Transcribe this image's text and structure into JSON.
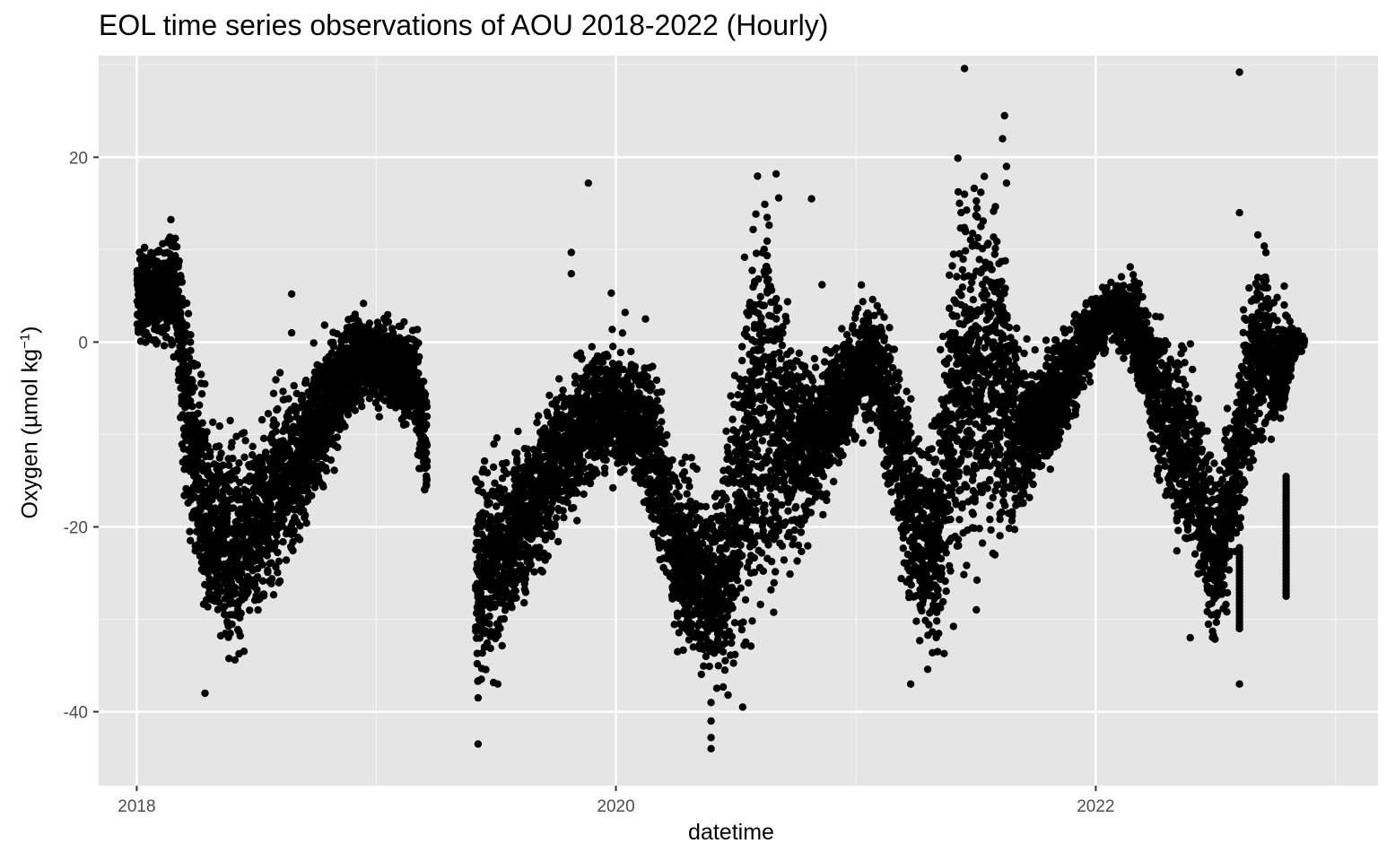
{
  "chart_data": {
    "type": "scatter",
    "title": "EOL time series observations of AOU 2018-2022 (Hourly)",
    "xlabel": "datetime",
    "ylabel": {
      "prefix": "Oxygen (µmol kg",
      "superscript": "−1",
      "suffix": ")"
    },
    "x_ticks": [
      "2018",
      "2020",
      "2022"
    ],
    "y_ticks": [
      "-40",
      "-20",
      "0",
      "20"
    ],
    "xlim": [
      "2017-11-04",
      "2023-03-07"
    ],
    "ylim": [
      -48,
      31
    ],
    "grid": true,
    "panel_background": "#e5e5e5",
    "point_color": "#000000",
    "series_envelope": {
      "dates": [
        "2018-01-01",
        "2018-02-01",
        "2018-03-01",
        "2018-03-15",
        "2018-04-01",
        "2018-05-01",
        "2018-06-01",
        "2018-07-01",
        "2018-08-01",
        "2018-09-01",
        "2018-10-01",
        "2018-11-01",
        "2018-12-01",
        "2019-01-01",
        "2019-02-01",
        "2019-03-01",
        "2019-03-20",
        "2019-06-01",
        "2019-07-01",
        "2019-08-01",
        "2019-09-01",
        "2019-10-01",
        "2019-11-01",
        "2019-12-01",
        "2020-01-01",
        "2020-02-01",
        "2020-03-01",
        "2020-04-01",
        "2020-05-01",
        "2020-06-01",
        "2020-07-01",
        "2020-08-01",
        "2020-08-15",
        "2020-09-01",
        "2020-10-01",
        "2020-11-01",
        "2020-12-01",
        "2021-01-01",
        "2021-02-01",
        "2021-03-01",
        "2021-04-01",
        "2021-05-01",
        "2021-06-01",
        "2021-07-01",
        "2021-08-01",
        "2021-08-15",
        "2021-09-01",
        "2021-10-01",
        "2021-11-01",
        "2021-12-01",
        "2022-01-01",
        "2022-02-01",
        "2022-03-01",
        "2022-04-01",
        "2022-05-01",
        "2022-06-01",
        "2022-07-01",
        "2022-08-01",
        "2022-08-20",
        "2022-09-01",
        "2022-09-20",
        "2022-10-01",
        "2022-10-15",
        "2022-11-01",
        "2022-11-15"
      ],
      "center": [
        5,
        5,
        6,
        -5,
        -15,
        -21,
        -22,
        -20,
        -16,
        -13,
        -10,
        -5,
        -2,
        -2,
        -3,
        -4,
        -12,
        -26,
        -24,
        -20,
        -17,
        -13,
        -10,
        -7,
        -8,
        -8,
        -13,
        -22,
        -25,
        -27,
        -20,
        -7,
        -6,
        -8,
        -12,
        -10,
        -7,
        -3,
        -3,
        -10,
        -20,
        -22,
        -5,
        -4,
        -4,
        -5,
        -10,
        -9,
        -6,
        -2,
        2,
        3,
        2,
        -5,
        -10,
        -14,
        -24,
        -15,
        -5,
        -2,
        0,
        -3,
        -2,
        0,
        0
      ],
      "spread": [
        3,
        3,
        4,
        7,
        7,
        7,
        7,
        6,
        6,
        5,
        5,
        4,
        3,
        3,
        3,
        4,
        4,
        7,
        6,
        5,
        5,
        5,
        5,
        4,
        4,
        4,
        6,
        6,
        6,
        6,
        9,
        13,
        13,
        11,
        7,
        5,
        4,
        4,
        4,
        6,
        7,
        7,
        12,
        11,
        11,
        9,
        6,
        4,
        4,
        3,
        2,
        2,
        3,
        5,
        6,
        6,
        6,
        5,
        6,
        6,
        5,
        4,
        4,
        1,
        0.5
      ]
    },
    "outliers": [
      {
        "x": "2018-04-15",
        "y": -38
      },
      {
        "x": "2018-08-25",
        "y": 5.2
      },
      {
        "x": "2018-08-25",
        "y": 1
      },
      {
        "x": "2019-06-05",
        "y": -43.5
      },
      {
        "x": "2019-06-05",
        "y": -38.5
      },
      {
        "x": "2019-07-05",
        "y": -37
      },
      {
        "x": "2019-10-25",
        "y": 9.7
      },
      {
        "x": "2019-10-25",
        "y": 7.4
      },
      {
        "x": "2019-11-20",
        "y": 17.2
      },
      {
        "x": "2019-12-25",
        "y": 5.3
      },
      {
        "x": "2020-01-15",
        "y": 3.2
      },
      {
        "x": "2020-02-15",
        "y": 2.5
      },
      {
        "x": "2020-05-25",
        "y": -44
      },
      {
        "x": "2020-05-25",
        "y": -42.8
      },
      {
        "x": "2020-05-25",
        "y": -41
      },
      {
        "x": "2020-05-25",
        "y": -39
      },
      {
        "x": "2020-06-15",
        "y": -35.5
      },
      {
        "x": "2020-07-12",
        "y": -39.5
      },
      {
        "x": "2020-09-01",
        "y": 18.2
      },
      {
        "x": "2020-09-05",
        "y": 15.6
      },
      {
        "x": "2020-10-25",
        "y": 15.5
      },
      {
        "x": "2020-11-10",
        "y": 6.2
      },
      {
        "x": "2021-03-25",
        "y": -37
      },
      {
        "x": "2021-05-15",
        "y": -33.7
      },
      {
        "x": "2021-05-05",
        "y": -33.5
      },
      {
        "x": "2021-06-05",
        "y": 19.9
      },
      {
        "x": "2021-06-15",
        "y": 29.6
      },
      {
        "x": "2021-08-15",
        "y": 24.5
      },
      {
        "x": "2021-08-12",
        "y": 22
      },
      {
        "x": "2021-08-18",
        "y": 19
      },
      {
        "x": "2021-08-18",
        "y": 17.2
      },
      {
        "x": "2021-07-10",
        "y": 16.2
      },
      {
        "x": "2021-06-15",
        "y": 16
      },
      {
        "x": "2022-08-08",
        "y": 29.2
      },
      {
        "x": "2022-08-08",
        "y": 14
      },
      {
        "x": "2022-09-05",
        "y": 11.6
      },
      {
        "x": "2022-08-08",
        "y": -37
      },
      {
        "x": "2022-08-08",
        "y": -31
      },
      {
        "x": "2022-05-25",
        "y": -32
      },
      {
        "x": "2022-09-05",
        "y": 7
      }
    ],
    "vertical_streaks": [
      {
        "x": "2022-08-08",
        "y_from": -31,
        "y_to": -22
      },
      {
        "x": "2022-10-18",
        "y_from": -27.5,
        "y_to": -14.5
      }
    ]
  }
}
